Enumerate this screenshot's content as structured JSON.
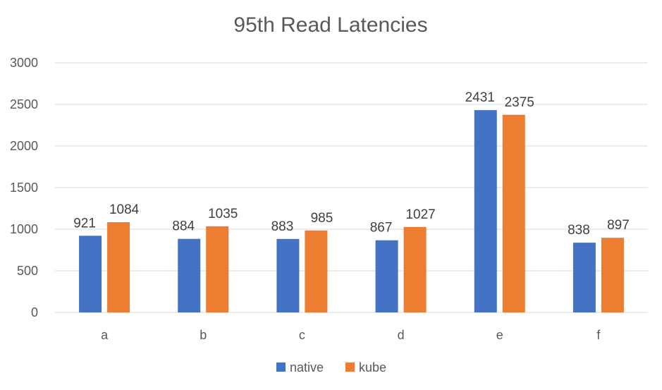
{
  "chart_data": {
    "type": "bar",
    "title": "95th Read Latencies",
    "categories": [
      "a",
      "b",
      "c",
      "d",
      "e",
      "f"
    ],
    "series": [
      {
        "name": "native",
        "color": "#4472c4",
        "values": [
          921,
          884,
          883,
          867,
          2431,
          838
        ]
      },
      {
        "name": "kube",
        "color": "#ed7d31",
        "values": [
          1084,
          1035,
          985,
          1027,
          2375,
          897
        ]
      }
    ],
    "ylim": [
      0,
      3000
    ],
    "yticks": [
      "0",
      "500",
      "1000",
      "1500",
      "2000",
      "2500",
      "3000"
    ],
    "grid": true,
    "legend": "bottom",
    "data_labels": true
  }
}
